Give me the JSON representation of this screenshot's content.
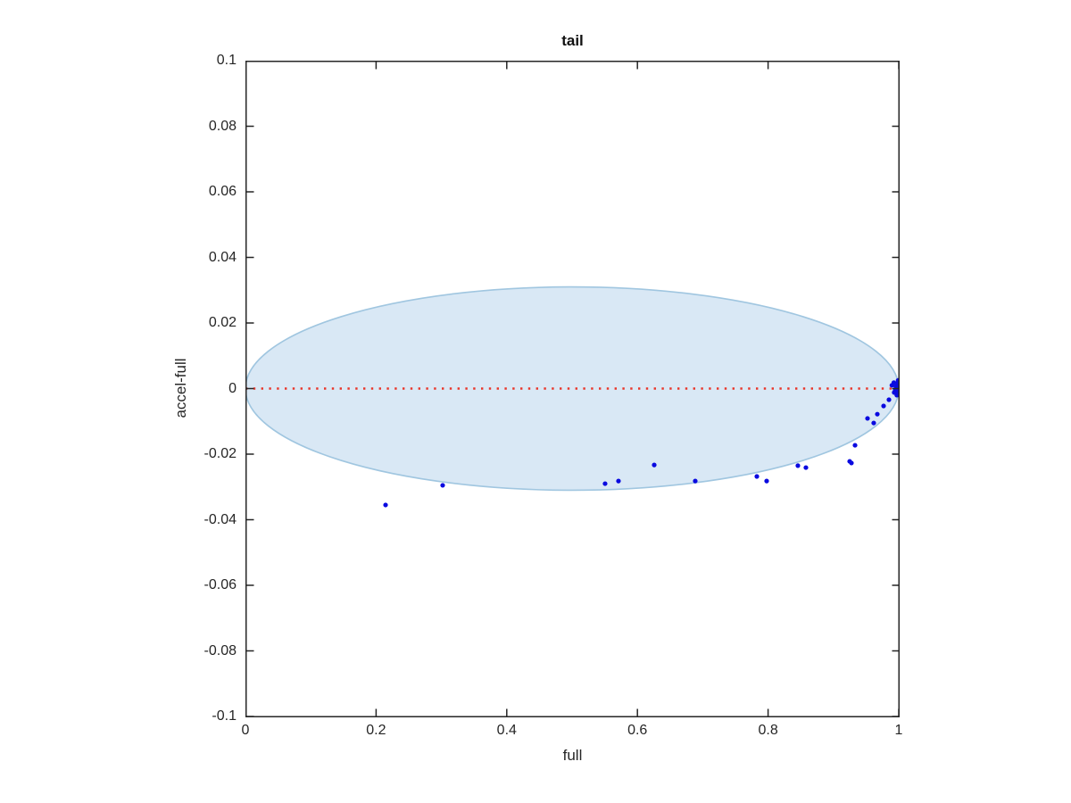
{
  "figure": {
    "background": "#ffffff"
  },
  "chart_data": {
    "type": "scatter",
    "title": "tail",
    "xlabel": "full",
    "ylabel": "accel-full",
    "xlim": [
      0,
      1
    ],
    "ylim": [
      -0.1,
      0.1
    ],
    "xticks": [
      0,
      0.2,
      0.4,
      0.6,
      0.8,
      1
    ],
    "xtick_labels": [
      "0",
      "0.2",
      "0.4",
      "0.6",
      "0.8",
      "1"
    ],
    "yticks": [
      0.1,
      0.08,
      0.06,
      0.04,
      0.02,
      0,
      -0.02,
      -0.04,
      -0.06,
      -0.08,
      -0.1
    ],
    "ytick_labels": [
      "0.1",
      "0.08",
      "0.06",
      "0.04",
      "0.02",
      "0",
      "-0.02",
      "-0.04",
      "-0.06",
      "-0.08",
      "-0.1"
    ],
    "grid": false,
    "legend": null,
    "axis_color": "#262626",
    "ellipse": {
      "cx": 0.5,
      "cy": 0,
      "rx": 0.5,
      "ry": 0.031,
      "fill": "#d9e8f5",
      "stroke": "#a0c6e0",
      "stroke_width": 1.6
    },
    "zero_line": {
      "y": 0,
      "color": "#e9362a",
      "style": "dotted"
    },
    "series": [
      {
        "name": "tail-points",
        "marker": "dot",
        "marker_radius": 2.6,
        "color": "#0a0ae0",
        "points": [
          [
            0.2145,
            -0.0355
          ],
          [
            0.3019,
            -0.0295
          ],
          [
            0.5505,
            -0.029
          ],
          [
            0.571,
            -0.0282
          ],
          [
            0.6257,
            -0.0233
          ],
          [
            0.6885,
            -0.0282
          ],
          [
            0.7828,
            -0.0268
          ],
          [
            0.7978,
            -0.0282
          ],
          [
            0.8456,
            -0.0235
          ],
          [
            0.8579,
            -0.0241
          ],
          [
            0.9249,
            -0.0222
          ],
          [
            0.9276,
            -0.0227
          ],
          [
            0.9331,
            -0.0173
          ],
          [
            0.9522,
            -0.0091
          ],
          [
            0.9617,
            -0.0105
          ],
          [
            0.9672,
            -0.0078
          ],
          [
            0.9768,
            -0.0053
          ],
          [
            0.985,
            -0.0034
          ],
          [
            0.9895,
            0.001
          ],
          [
            0.9925,
            0.0018
          ],
          [
            0.9955,
            0.0006
          ],
          [
            0.998,
            0.0016
          ],
          [
            1.0,
            0.0008
          ],
          [
            0.9945,
            -0.0005
          ],
          [
            0.9975,
            -0.0008
          ],
          [
            1.0,
            -0.0002
          ],
          [
            0.993,
            -0.0012
          ],
          [
            0.997,
            -0.002
          ],
          [
            0.9995,
            -0.0015
          ],
          [
            0.999,
            0.0025
          ]
        ]
      }
    ]
  }
}
